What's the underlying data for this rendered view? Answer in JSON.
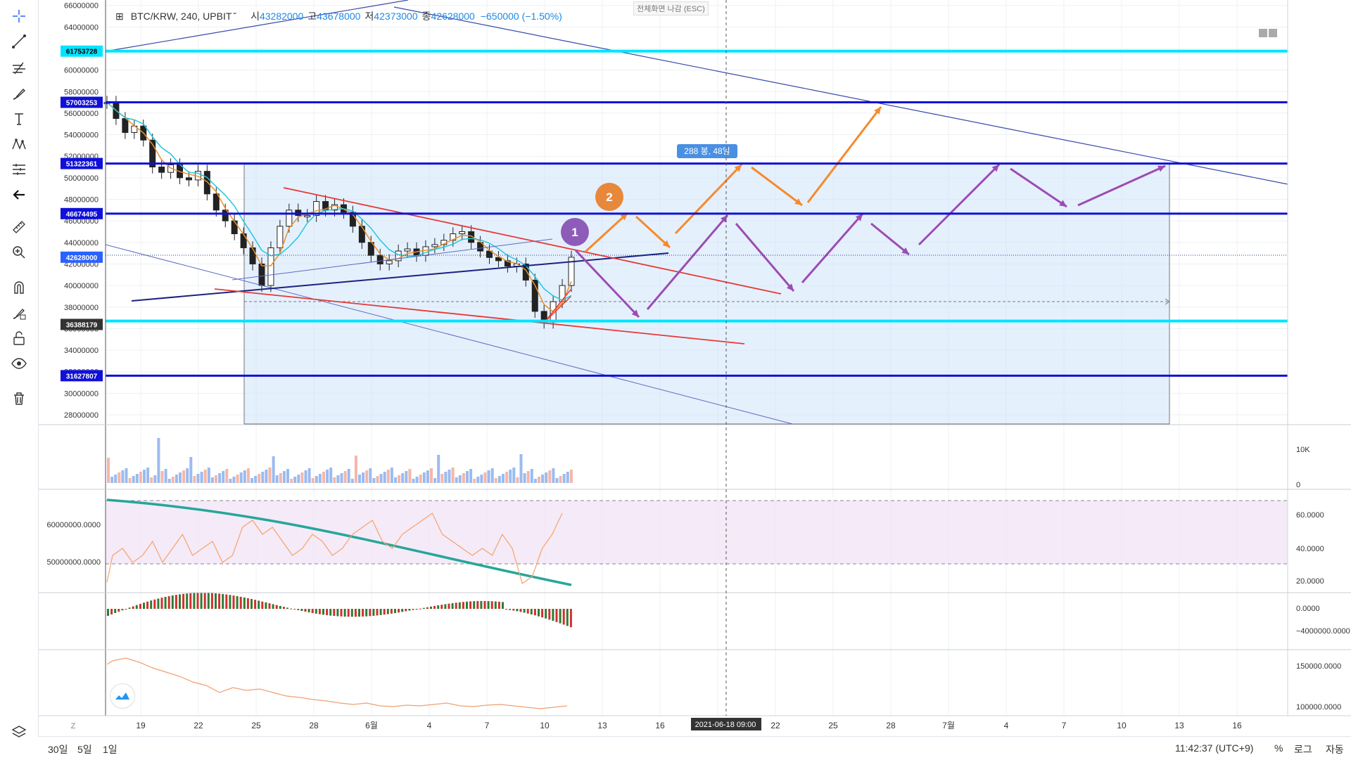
{
  "symbol": {
    "pair": "BTC/KRW, 240, UPBIT",
    "open_label": "시",
    "open": "43282000",
    "high_label": "고",
    "high": "43678000",
    "low_label": "저",
    "low": "42373000",
    "close_label": "종",
    "close": "42628000",
    "change": "−650000 (−1.50%)"
  },
  "esc_hint": "전체화면 나감 (ESC)",
  "toolbar": {
    "tools": [
      "crosshair-icon",
      "trendline-icon",
      "fib-icon",
      "brush-icon",
      "text-icon",
      "pattern-icon",
      "forecast-icon",
      "back-arrow-icon",
      "ruler-icon",
      "zoom-icon",
      "magnet-icon",
      "lock-draw-icon",
      "unlock-icon",
      "eye-icon",
      "trash-icon"
    ],
    "layers_icon": "layers-icon"
  },
  "bottom": {
    "ranges": [
      "30일",
      "5일",
      "1일"
    ],
    "clock": "11:42:37 (UTC+9)",
    "percent": "%",
    "log": "로그",
    "auto": "자동"
  },
  "colors": {
    "up": "#e65a4f",
    "down": "#2962ff",
    "cyan_level": "#00e5ff",
    "blue_level": "#1010d8",
    "orange_arrow": "#f68a2b",
    "purple_arrow": "#9c4cb3",
    "red_channel": "#e53935",
    "teal_ma": "#26a69a",
    "rsi_line": "#f5a36c"
  },
  "chart_data": [
    {
      "type": "line",
      "panel": "price",
      "yaxis_ticks": [
        "66000000",
        "64000000",
        "62000000",
        "60000000",
        "58000000",
        "56000000",
        "54000000",
        "52000000",
        "50000000",
        "48000000",
        "46000000",
        "44000000",
        "42000000",
        "40000000",
        "38000000",
        "36000000",
        "34000000",
        "32000000",
        "30000000",
        "28000000"
      ],
      "ylim": [
        27000000,
        66000000
      ],
      "xaxis_ticks": [
        "19",
        "22",
        "25",
        "28",
        "6월",
        "4",
        "7",
        "10",
        "13",
        "16",
        "19",
        "22",
        "25",
        "28",
        "7월",
        "4",
        "7",
        "10",
        "13",
        "16"
      ],
      "price_labels": [
        {
          "value": 61753728,
          "text": "61753728",
          "style": "cyan"
        },
        {
          "value": 57003253,
          "text": "57003253",
          "style": "blue"
        },
        {
          "value": 51322361,
          "text": "51322361",
          "style": "blue"
        },
        {
          "value": 46674495,
          "text": "46674495",
          "style": "blue"
        },
        {
          "value": 42628000,
          "text": "42628000",
          "style": "current"
        },
        {
          "value": 36388179,
          "text": "36388179",
          "style": "dark"
        },
        {
          "value": 31627807,
          "text": "31627807",
          "style": "blue"
        }
      ],
      "horizontal_levels": [
        {
          "value": 61753728,
          "color": "cyan"
        },
        {
          "value": 57003253,
          "color": "blue"
        },
        {
          "value": 51322361,
          "color": "blue"
        },
        {
          "value": 46674495,
          "color": "blue"
        },
        {
          "value": 36700000,
          "color": "cyan"
        },
        {
          "value": 31627807,
          "color": "blue"
        }
      ],
      "crosshair_date": "2021-06-18",
      "crosshair_time": "09:00",
      "range_label": "288 봉, 48일",
      "markers": [
        "1",
        "2"
      ],
      "close_series": [
        57000000,
        55500000,
        54200000,
        54800000,
        53500000,
        51000000,
        50500000,
        51200000,
        50000000,
        49800000,
        50600000,
        48500000,
        47000000,
        46000000,
        44800000,
        43500000,
        42000000,
        40000000,
        43500000,
        45500000,
        47000000,
        46500000,
        46500000,
        47800000,
        47000000,
        47500000,
        46800000,
        45500000,
        44000000,
        42800000,
        42000000,
        42300000,
        43200000,
        43400000,
        42800000,
        43600000,
        43800000,
        44200000,
        44800000,
        45000000,
        44000000,
        43200000,
        42600000,
        42300000,
        41800000,
        42000000,
        40500000,
        37600000,
        36600000,
        38500000,
        40000000,
        42628000
      ]
    },
    {
      "type": "bar",
      "panel": "volume",
      "yaxis_ticks": [
        "10K",
        "0"
      ]
    },
    {
      "type": "line",
      "panel": "rsi",
      "left_ticks": [
        "60000000.0000",
        "50000000.0000"
      ],
      "right_ticks": [
        "60.0000",
        "40.0000",
        "20.0000"
      ],
      "band": [
        30,
        70
      ]
    },
    {
      "type": "bar",
      "panel": "macd_histogram",
      "right_ticks": [
        "0.0000",
        "−4000000.0000"
      ]
    },
    {
      "type": "line",
      "panel": "atr",
      "right_ticks": [
        "150000.0000",
        "100000.0000"
      ]
    }
  ]
}
